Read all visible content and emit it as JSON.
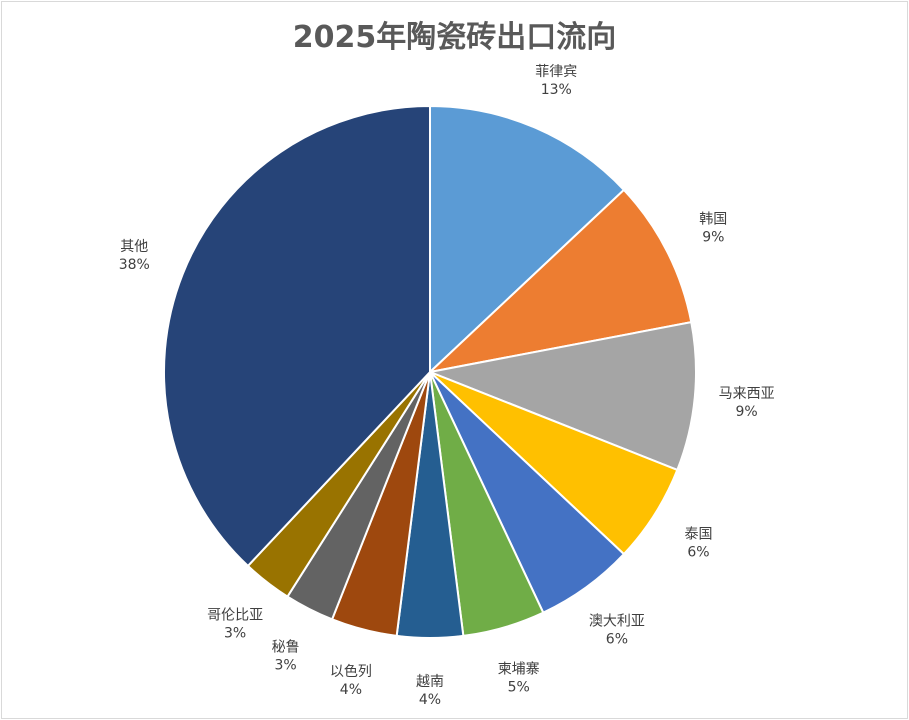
{
  "chart_data": {
    "type": "pie",
    "title": "2025年陶瓷砖出口流向",
    "categories": [
      "菲律宾",
      "韩国",
      "马来西亚",
      "泰国",
      "澳大利亚",
      "柬埔寨",
      "越南",
      "以色列",
      "秘鲁",
      "哥伦比亚",
      "其他"
    ],
    "values": [
      13,
      9,
      9,
      6,
      6,
      5,
      4,
      4,
      3,
      3,
      38
    ],
    "value_labels": [
      "13%",
      "9%",
      "9%",
      "6%",
      "6%",
      "5%",
      "4%",
      "4%",
      "3%",
      "3%",
      "38%"
    ],
    "colors": [
      "#5b9bd5",
      "#ed7d31",
      "#a5a5a5",
      "#ffc000",
      "#4472c4",
      "#70ad47",
      "#255e91",
      "#9e480e",
      "#636363",
      "#997300",
      "#264478"
    ],
    "legend": "none",
    "start_angle": "12 o'clock, clockwise"
  }
}
